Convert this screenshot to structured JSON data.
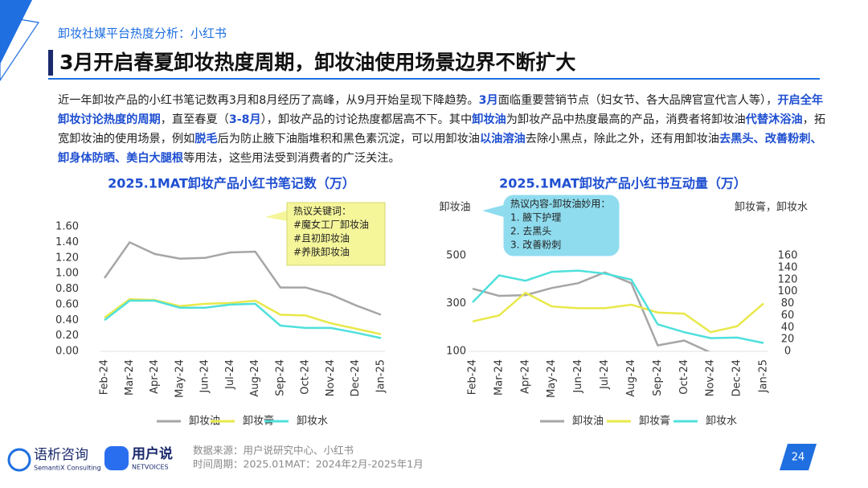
{
  "header": {
    "section": "卸妆社媒平台热度分析：小红书",
    "title": "3月开启春夏卸妆热度周期，卸妆油使用场景边界不断扩大"
  },
  "paragraph": [
    {
      "text": "近一年卸妆产品的小红书笔记数再3月和8月经历了高峰，从9月开始呈现下降趋势。",
      "em": false
    },
    {
      "text": "3月",
      "em": true
    },
    {
      "text": "面临重要营销节点（妇女节、各大品牌官宣代言人等），",
      "em": false
    },
    {
      "text": "开启全年卸妆讨论热度的周期",
      "em": true
    },
    {
      "text": "，直至春夏（",
      "em": false
    },
    {
      "text": "3-8月",
      "em": true
    },
    {
      "text": "），卸妆产品的讨论热度都居高不下。其中",
      "em": false
    },
    {
      "text": "卸妆油",
      "em": true
    },
    {
      "text": "为卸妆产品中热度最高的产品，消费者将卸妆油",
      "em": false
    },
    {
      "text": "代替沐浴油",
      "em": true
    },
    {
      "text": "，拓宽卸妆油的使用场景，例如",
      "em": false
    },
    {
      "text": "脱毛",
      "em": true
    },
    {
      "text": "后为防止腋下油脂堆积和黑色素沉淀，可以用卸妆油",
      "em": false
    },
    {
      "text": "以油溶油",
      "em": true
    },
    {
      "text": "去除小黑点，除此之外，还有用卸妆油",
      "em": false
    },
    {
      "text": "去黑头、改善粉刺、卸身体防晒、美白大腿根",
      "em": true
    },
    {
      "text": "等用法，这些用法受到消费者的广泛关注。",
      "em": false
    }
  ],
  "chart_data": [
    {
      "type": "line",
      "title": "2025.1MAT卸妆产品小红书笔记数（万）",
      "categories": [
        "Feb-24",
        "Mar-24",
        "Apr-24",
        "May-24",
        "Jun-24",
        "Jul-24",
        "Aug-24",
        "Sep-24",
        "Oct-24",
        "Nov-24",
        "Dec-24",
        "Jan-25"
      ],
      "ylim": [
        0,
        1.6
      ],
      "yticks": [
        {
          "value": 0,
          "label": "0.00"
        },
        {
          "value": 0.2,
          "label": "0.20"
        },
        {
          "value": 0.4,
          "label": "0.40"
        },
        {
          "value": 0.6,
          "label": "0.60"
        },
        {
          "value": 0.8,
          "label": "0.80"
        },
        {
          "value": 1.0,
          "label": "1.00"
        },
        {
          "value": 1.2,
          "label": "1.20"
        },
        {
          "value": 1.4,
          "label": "1.40"
        },
        {
          "value": 1.6,
          "label": "1.60"
        }
      ],
      "grid": false,
      "series": [
        {
          "name": "卸妆油",
          "color": "#a6a6a6",
          "values": [
            0.94,
            1.4,
            1.25,
            1.19,
            1.2,
            1.27,
            1.28,
            0.82,
            0.82,
            0.73,
            0.59,
            0.47
          ]
        },
        {
          "name": "卸妆膏",
          "color": "#e8e84a",
          "values": [
            0.43,
            0.67,
            0.66,
            0.58,
            0.61,
            0.62,
            0.65,
            0.47,
            0.46,
            0.36,
            0.29,
            0.22
          ]
        },
        {
          "name": "卸妆水",
          "color": "#4fe0dc",
          "values": [
            0.4,
            0.65,
            0.65,
            0.56,
            0.56,
            0.6,
            0.61,
            0.33,
            0.3,
            0.3,
            0.24,
            0.17
          ]
        }
      ],
      "annotation": [
        "热议关键词：",
        "#魔女工厂卸妆油",
        "#且初卸妆油",
        "#养肤卸妆油"
      ]
    },
    {
      "type": "line",
      "title": "2025.1MAT卸妆产品小红书互动量（万）",
      "ylabel": "卸妆油",
      "y2label": "卸妆膏，卸妆水",
      "categories": [
        "Feb-24",
        "Mar-24",
        "Apr-24",
        "May-24",
        "Jun-24",
        "Jul-24",
        "Aug-24",
        "Sep-24",
        "Oct-24",
        "Nov-24",
        "Dec-24",
        "Jan-25"
      ],
      "ylim": [
        100,
        500
      ],
      "yticks": [
        100,
        300,
        500
      ],
      "y2lim": [
        0,
        160
      ],
      "y2ticks": [
        0,
        20,
        40,
        60,
        80,
        100,
        120,
        140,
        160
      ],
      "grid": false,
      "series": [
        {
          "name": "卸妆油",
          "color": "#a6a6a6",
          "values": [
            362,
            332,
            335,
            365,
            385,
            430,
            385,
            125,
            145,
            95,
            null,
            null
          ]
        },
        {
          "name": "卸妆膏",
          "color": "#e8e84a",
          "axis": "y2",
          "values": [
            50,
            60,
            98,
            75,
            72,
            72,
            78,
            65,
            63,
            32,
            42,
            80
          ]
        },
        {
          "name": "卸妆水",
          "color": "#4fe0dc",
          "axis": "y2",
          "values": [
            82,
            127,
            118,
            133,
            135,
            130,
            120,
            45,
            32,
            22,
            23,
            14
          ]
        }
      ],
      "annotation": [
        "热议内容-卸妆油妙用：",
        "1. 腋下护理",
        "2. 去黑头",
        "3. 改善粉刺"
      ]
    }
  ],
  "footer": {
    "brand1": "语析咨询",
    "brand1_sub": "SemantiX Consulting",
    "brand2": "用户说",
    "brand2_sub": "NETVOICES",
    "source": "数据来源：用户说研究中心、小红书",
    "period": "时间周期：2025.01MAT：2024年2月-2025年1月",
    "page_number": "24"
  }
}
